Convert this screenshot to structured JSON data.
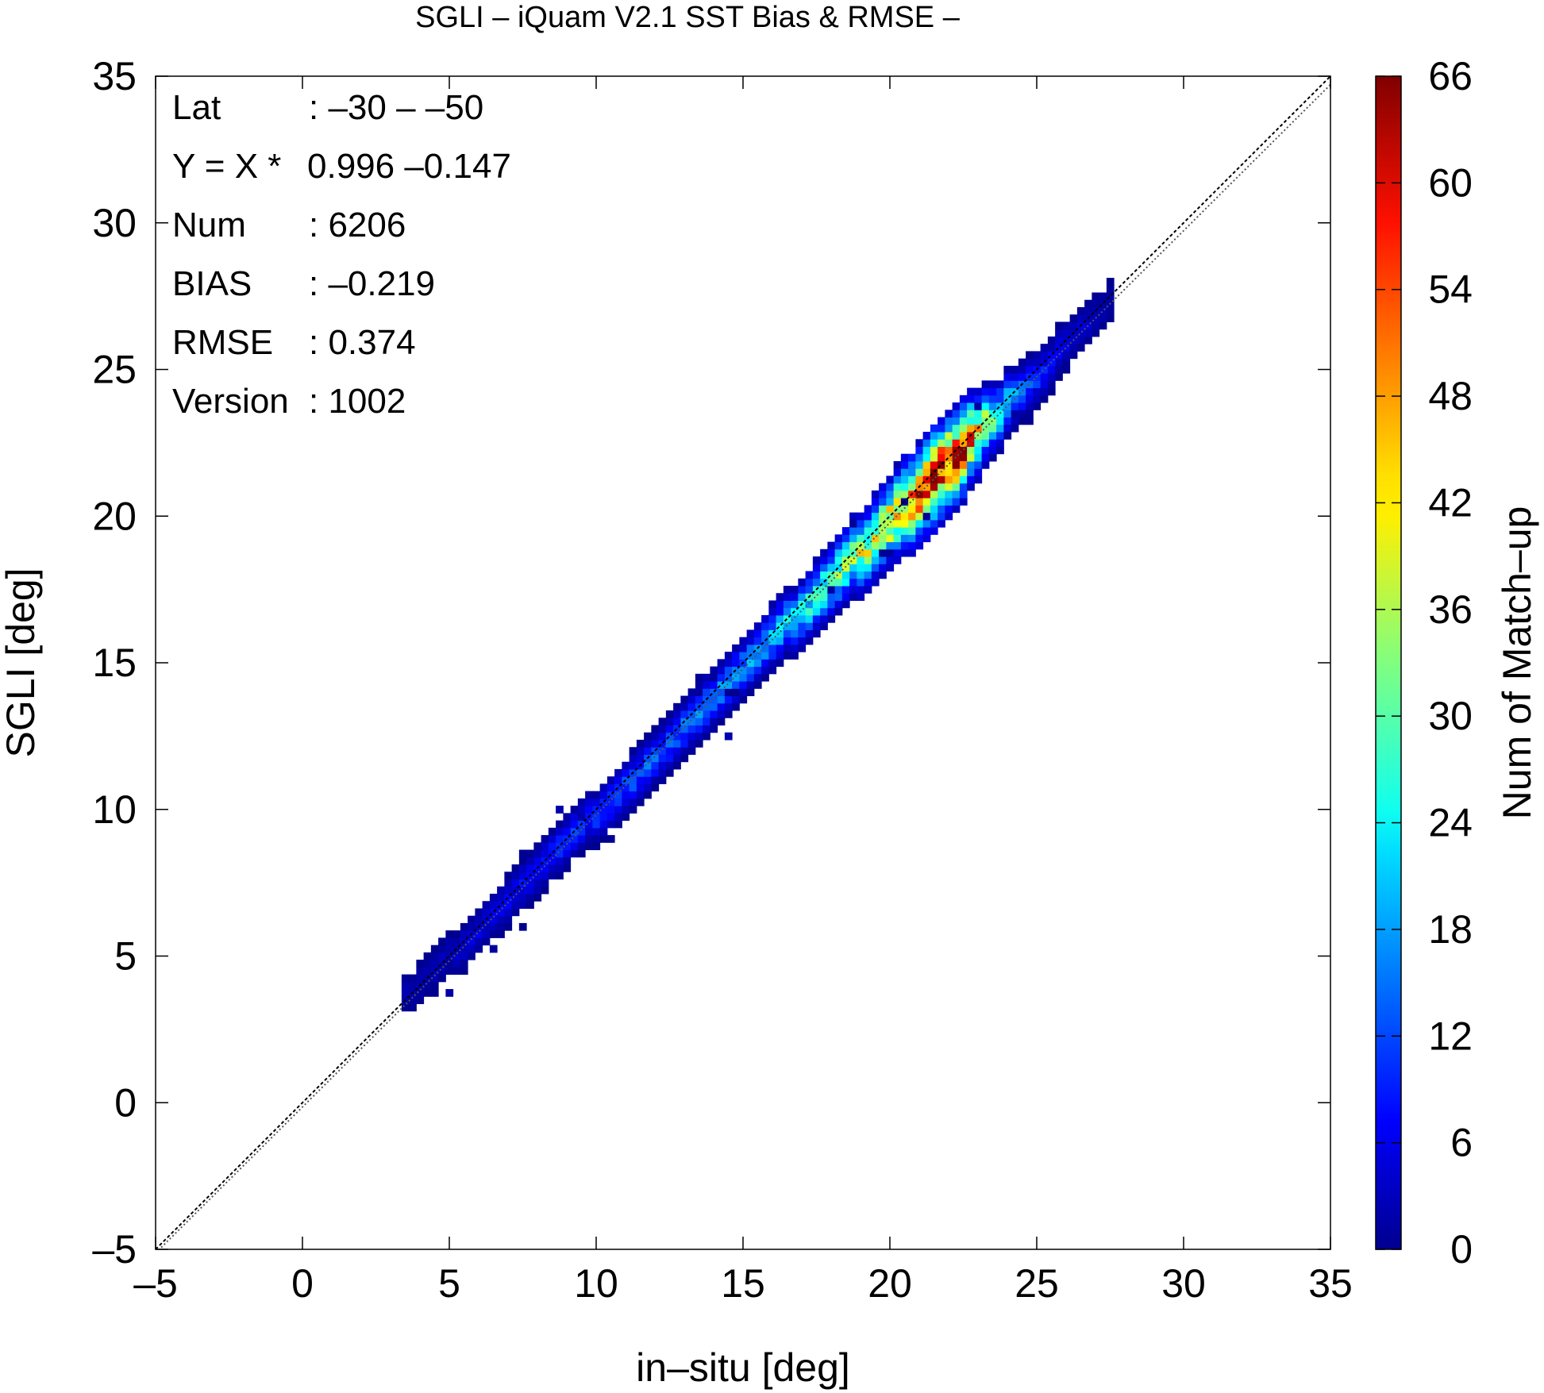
{
  "chart_data": {
    "type": "heatmap",
    "title": "SGLI – iQuam V2.1 SST Bias & RMSE  –",
    "xlabel": "in–situ [deg]",
    "ylabel": "SGLI [deg]",
    "xlim": [
      -5,
      35
    ],
    "ylim": [
      -5,
      35
    ],
    "xticks": [
      "–5",
      "0",
      "5",
      "10",
      "15",
      "20",
      "25",
      "30",
      "35"
    ],
    "yticks": [
      "–5",
      "0",
      "5",
      "10",
      "15",
      "20",
      "25",
      "30",
      "35"
    ],
    "xtick_values": [
      -5,
      0,
      5,
      10,
      15,
      20,
      25,
      30,
      35
    ],
    "ytick_values": [
      -5,
      0,
      5,
      10,
      15,
      20,
      25,
      30,
      35
    ],
    "grid": false,
    "colorbar": {
      "label": "Num of Match–up",
      "range": [
        0,
        66
      ],
      "ticks": [
        "0",
        "6",
        "12",
        "18",
        "24",
        "30",
        "36",
        "42",
        "48",
        "54",
        "60",
        "66"
      ],
      "tick_values": [
        0,
        6,
        12,
        18,
        24,
        30,
        36,
        42,
        48,
        54,
        60,
        66
      ],
      "colormap": "jet"
    },
    "reference_lines": [
      {
        "kind": "1:1",
        "slope": 1.0,
        "intercept": 0.0
      },
      {
        "kind": "regression",
        "slope": 0.996,
        "intercept": -0.147
      }
    ],
    "density_ridge": [
      {
        "x": 3.5,
        "y": 3.7,
        "count": 3
      },
      {
        "x": 5.0,
        "y": 5.0,
        "count": 4
      },
      {
        "x": 6.0,
        "y": 5.9,
        "count": 6
      },
      {
        "x": 7.5,
        "y": 7.3,
        "count": 8
      },
      {
        "x": 9.0,
        "y": 8.9,
        "count": 10
      },
      {
        "x": 10.5,
        "y": 10.3,
        "count": 12
      },
      {
        "x": 12.5,
        "y": 12.3,
        "count": 14
      },
      {
        "x": 14.0,
        "y": 13.8,
        "count": 16
      },
      {
        "x": 15.5,
        "y": 15.3,
        "count": 18
      },
      {
        "x": 17.0,
        "y": 16.8,
        "count": 24
      },
      {
        "x": 18.5,
        "y": 18.3,
        "count": 32
      },
      {
        "x": 20.0,
        "y": 19.8,
        "count": 44
      },
      {
        "x": 21.5,
        "y": 21.3,
        "count": 60
      },
      {
        "x": 22.5,
        "y": 22.3,
        "count": 55
      },
      {
        "x": 23.5,
        "y": 23.3,
        "count": 28
      },
      {
        "x": 24.5,
        "y": 24.3,
        "count": 14
      },
      {
        "x": 26.0,
        "y": 25.8,
        "count": 6
      },
      {
        "x": 27.5,
        "y": 27.4,
        "count": 3
      }
    ]
  },
  "stats": {
    "lat_label": "Lat",
    "lat_value": ": –30 – –50",
    "eq_label": "Y = X *",
    "eq_value": "0.996 –0.147",
    "num_label": "Num",
    "num_value": ": 6206",
    "bias_label": "BIAS",
    "bias_value": ": –0.219",
    "rmse_label": "RMSE",
    "rmse_value": ": 0.374",
    "version_label": "Version",
    "version_value": ": 1002"
  }
}
